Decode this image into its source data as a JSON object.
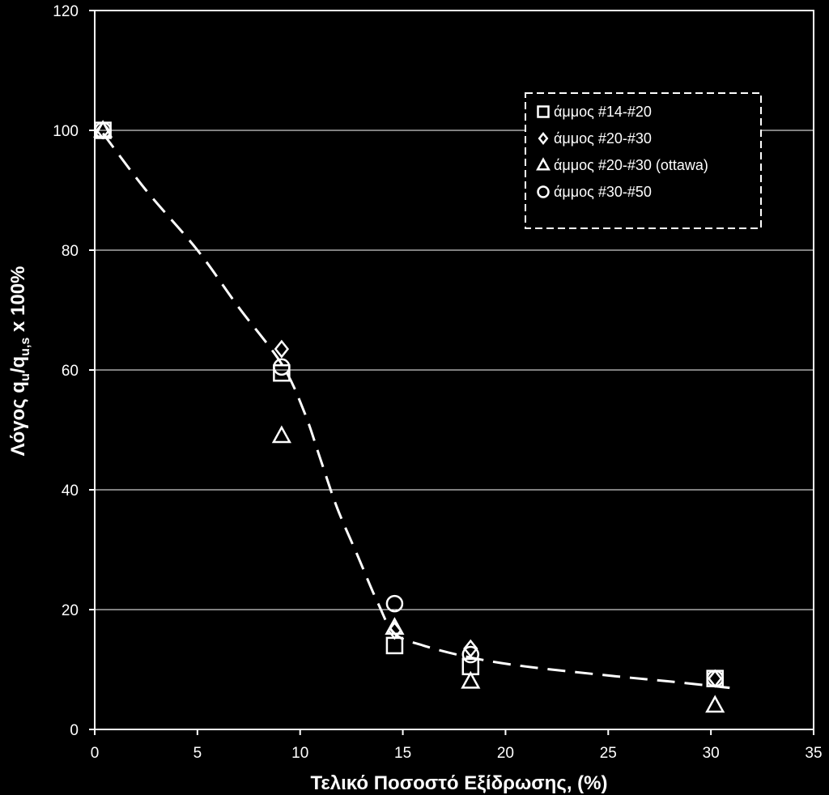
{
  "chart_data": {
    "type": "scatter",
    "xlabel": "Τελικό Ποσοστό Εξίδρωσης, (%)",
    "ylabel": {
      "main": "Λόγος q",
      "sub1": "u",
      "mid": "/q",
      "sub2": "u,s",
      "tail": " x 100%"
    },
    "xlim": [
      0,
      35
    ],
    "ylim": [
      0,
      120
    ],
    "xticks": [
      0,
      5,
      10,
      15,
      20,
      25,
      30,
      35
    ],
    "yticks": [
      0,
      20,
      40,
      60,
      80,
      100,
      120
    ],
    "grid": "horizontal",
    "legend_position": "top-right",
    "background": "#000000",
    "foreground": "#ffffff",
    "series": [
      {
        "name": "άμμος #14-#20",
        "marker": "square",
        "points": [
          [
            0.4,
            100
          ],
          [
            9.1,
            59.5
          ],
          [
            14.6,
            14
          ],
          [
            18.3,
            10.5
          ],
          [
            30.2,
            8.5
          ]
        ]
      },
      {
        "name": "άμμος #20-#30",
        "marker": "diamond",
        "points": [
          [
            0.4,
            100
          ],
          [
            9.1,
            63.5
          ],
          [
            14.6,
            16.5
          ],
          [
            18.3,
            13.5
          ],
          [
            30.2,
            8.5
          ]
        ]
      },
      {
        "name": "άμμος #20-#30 (ottawa)",
        "marker": "triangle",
        "points": [
          [
            0.4,
            100
          ],
          [
            9.1,
            49
          ],
          [
            14.6,
            17
          ],
          [
            18.3,
            8
          ],
          [
            30.2,
            4
          ]
        ]
      },
      {
        "name": "άμμος #30-#50",
        "marker": "circle",
        "points": [
          [
            0.4,
            100
          ],
          [
            9.1,
            60.5
          ],
          [
            14.6,
            21
          ],
          [
            18.3,
            12.5
          ],
          [
            30.2,
            8.5
          ]
        ]
      }
    ],
    "trendline": {
      "style": "dashed",
      "points": [
        [
          0.4,
          99.5
        ],
        [
          2.5,
          90
        ],
        [
          5,
          80
        ],
        [
          7,
          70.5
        ],
        [
          9.1,
          61
        ],
        [
          10.2,
          53
        ],
        [
          11,
          45
        ],
        [
          11.8,
          37
        ],
        [
          12.8,
          29
        ],
        [
          13.8,
          21
        ],
        [
          14.6,
          16
        ],
        [
          16,
          14
        ],
        [
          18.3,
          12
        ],
        [
          21,
          10.5
        ],
        [
          25,
          9
        ],
        [
          28,
          8
        ],
        [
          31.3,
          6.8
        ]
      ]
    }
  }
}
